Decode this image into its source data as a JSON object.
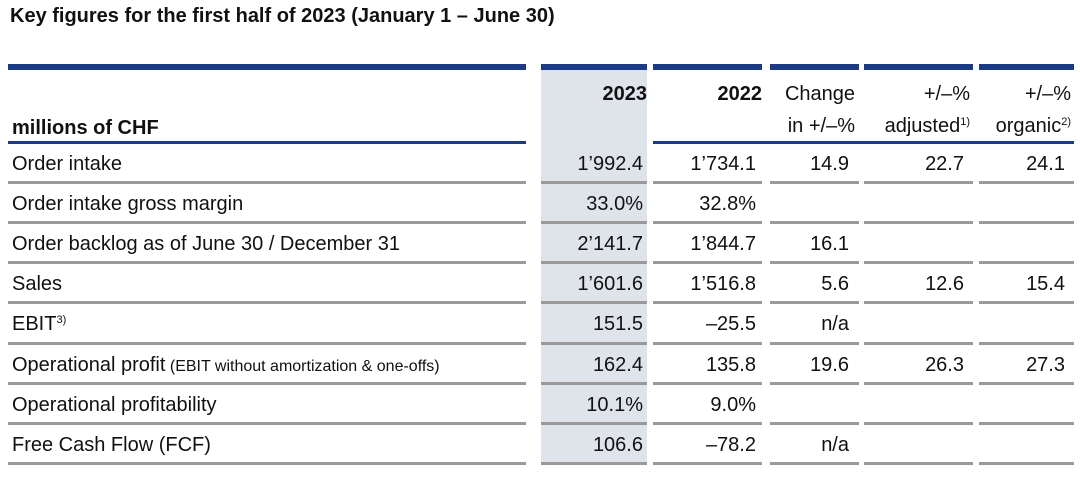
{
  "title": "Key figures for the first half of 2023 (January 1 – June 30)",
  "header": {
    "unit": "millions of CHF",
    "col_2023": "2023",
    "col_2022": "2022",
    "change_line1": "Change",
    "change_line2": "in +/–%",
    "adj_line1": "+/–%",
    "adj_line2": "adjusted",
    "adj_sup": "1)",
    "org_line1": "+/–%",
    "org_line2": "organic",
    "org_sup": "2)"
  },
  "rows": [
    {
      "label": "Order intake",
      "v2023": "1’992.4",
      "v2022": "1’734.1",
      "change": "14.9",
      "adjusted": "22.7",
      "organic": "24.1"
    },
    {
      "label": "Order intake gross margin",
      "v2023": "33.0%",
      "v2022": "32.8%",
      "change": "",
      "adjusted": "",
      "organic": ""
    },
    {
      "label": "Order backlog as of June 30 / December 31",
      "v2023": "2’141.7",
      "v2022": "1’844.7",
      "change": "16.1",
      "adjusted": "",
      "organic": ""
    },
    {
      "label": "Sales",
      "v2023": "1’601.6",
      "v2022": "1’516.8",
      "change": "5.6",
      "adjusted": "12.6",
      "organic": "15.4"
    },
    {
      "label": "EBIT",
      "sup": "3)",
      "v2023": "151.5",
      "v2022": "–25.5",
      "change": "n/a",
      "adjusted": "",
      "organic": ""
    },
    {
      "label": "Operational profit",
      "note": "(EBIT without amortization & one-offs)",
      "v2023": "162.4",
      "v2022": "135.8",
      "change": "19.6",
      "adjusted": "26.3",
      "organic": "27.3"
    },
    {
      "label": "Operational profitability",
      "v2023": "10.1%",
      "v2022": "9.0%",
      "change": "",
      "adjusted": "",
      "organic": ""
    },
    {
      "label": "Free Cash Flow (FCF)",
      "v2023": "106.6",
      "v2022": "–78.2",
      "change": "n/a",
      "adjusted": "",
      "organic": ""
    }
  ]
}
